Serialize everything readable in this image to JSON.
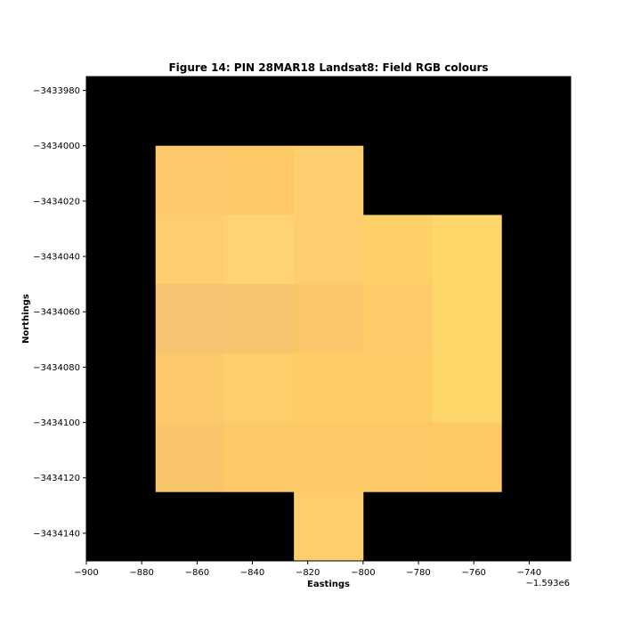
{
  "chart_data": {
    "type": "heatmap",
    "title": "Figure 14: PIN 28MAR18  Landsat8: Field RGB colours",
    "xlabel": "Eastings",
    "ylabel": "Northings",
    "x_offset_label": "−1.593e6",
    "xlim": [
      -900,
      -725
    ],
    "ylim": [
      -3434150,
      -3433975
    ],
    "x_ticks": [
      "−900",
      "−880",
      "−860",
      "−840",
      "−820",
      "−800",
      "−780",
      "−760",
      "−740"
    ],
    "x_tick_values": [
      -900,
      -880,
      -860,
      -840,
      -820,
      -800,
      -780,
      -760,
      -740
    ],
    "y_ticks": [
      "−3433980",
      "−3434000",
      "−3434020",
      "−3434040",
      "−3434060",
      "−3434080",
      "−3434100",
      "−3434120",
      "−3434140"
    ],
    "y_tick_values": [
      -3433980,
      -3434000,
      -3434020,
      -3434040,
      -3434060,
      -3434080,
      -3434100,
      -3434120,
      -3434140
    ],
    "cell_size": 25,
    "background_color": "#000000",
    "cells": [
      {
        "x0": -875,
        "y_top": -3434000,
        "color": "#fdc96c"
      },
      {
        "x0": -850,
        "y_top": -3434000,
        "color": "#fec967"
      },
      {
        "x0": -825,
        "y_top": -3434000,
        "color": "#fecf6e"
      },
      {
        "x0": -875,
        "y_top": -3434025,
        "color": "#fecd70"
      },
      {
        "x0": -850,
        "y_top": -3434025,
        "color": "#ffd374"
      },
      {
        "x0": -825,
        "y_top": -3434025,
        "color": "#fecd6e"
      },
      {
        "x0": -800,
        "y_top": -3434025,
        "color": "#fed168"
      },
      {
        "x0": -775,
        "y_top": -3434025,
        "color": "#ffd66a"
      },
      {
        "x0": -875,
        "y_top": -3434050,
        "color": "#f5c372"
      },
      {
        "x0": -850,
        "y_top": -3434050,
        "color": "#f8c56f"
      },
      {
        "x0": -825,
        "y_top": -3434050,
        "color": "#fbc669"
      },
      {
        "x0": -800,
        "y_top": -3434050,
        "color": "#fdcb68"
      },
      {
        "x0": -775,
        "y_top": -3434050,
        "color": "#ffd66a"
      },
      {
        "x0": -875,
        "y_top": -3434075,
        "color": "#fdca6b"
      },
      {
        "x0": -850,
        "y_top": -3434075,
        "color": "#fece6a"
      },
      {
        "x0": -825,
        "y_top": -3434075,
        "color": "#fecd66"
      },
      {
        "x0": -800,
        "y_top": -3434075,
        "color": "#fecd66"
      },
      {
        "x0": -775,
        "y_top": -3434075,
        "color": "#ffd66a"
      },
      {
        "x0": -875,
        "y_top": -3434100,
        "color": "#f8c56a"
      },
      {
        "x0": -850,
        "y_top": -3434100,
        "color": "#fdc967"
      },
      {
        "x0": -825,
        "y_top": -3434100,
        "color": "#fdc966"
      },
      {
        "x0": -800,
        "y_top": -3434100,
        "color": "#fdc966"
      },
      {
        "x0": -775,
        "y_top": -3434100,
        "color": "#fdca66"
      },
      {
        "x0": -825,
        "y_top": -3434125,
        "color": "#fecd6c"
      }
    ]
  }
}
